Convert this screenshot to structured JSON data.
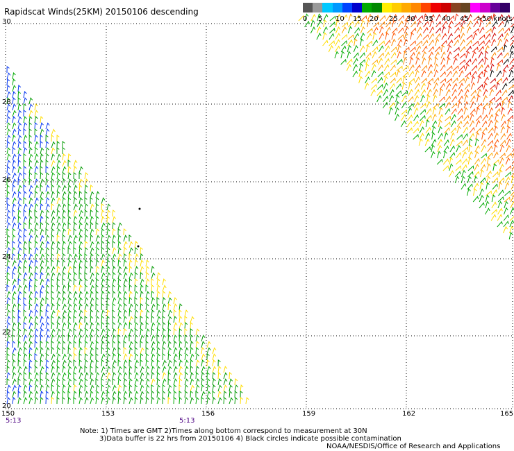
{
  "title": "Rapidscat Winds(25KM) 20150106 descending",
  "legend": {
    "colors": [
      "#555555",
      "#999999",
      "#00c8ff",
      "#0099ff",
      "#0044ff",
      "#0000cc",
      "#00aa00",
      "#008800",
      "#ffee00",
      "#ffcc00",
      "#ffaa00",
      "#ff8800",
      "#ff4400",
      "#ee0000",
      "#cc0000",
      "#884422",
      "#664422",
      "#ff00ff",
      "#cc00cc",
      "#660099",
      "#330066"
    ],
    "labels": [
      "0",
      "5",
      "10",
      "15",
      "20",
      "25",
      "30",
      "35",
      "40",
      "45",
      ">50 knots"
    ]
  },
  "map": {
    "lon_range": [
      150,
      165
    ],
    "lat_range": [
      20,
      30
    ],
    "lon_labels": [
      "150",
      "153",
      "156",
      "159",
      "162",
      "165"
    ],
    "lat_labels": [
      "30",
      "28",
      "26",
      "24",
      "22",
      "20"
    ],
    "time_labels": [
      "5:13",
      "5:13"
    ]
  },
  "notes": {
    "line1": "Note: 1) Times are GMT 2)Times along bottom correspond to measurement at 30N",
    "line2": "3)Data buffer is 22 hrs from 20150106 4) Black circles indicate possible contamination",
    "line3": "NOAA/NESDIS/Office of Research and Applications"
  }
}
